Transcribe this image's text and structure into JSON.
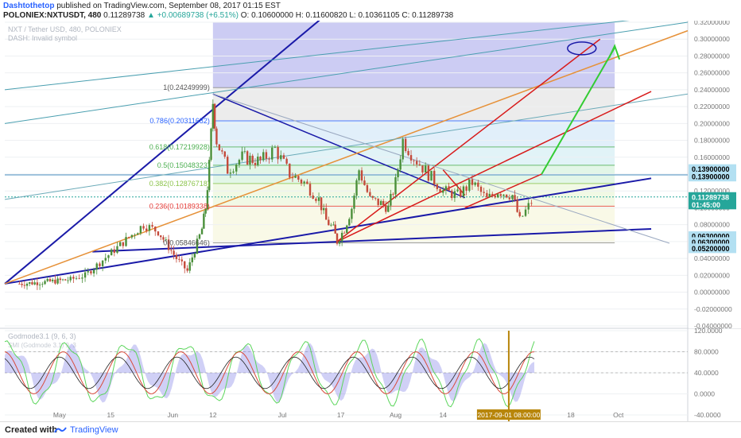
{
  "header": {
    "author": "Dashtothetop",
    "published": "published on TradingView.com, September 08, 2017 01:15 EST",
    "symbol_line": "POLONIEX:NXTUSDT, 480",
    "last": "0.11289738",
    "change": "▲ +0.00689738 (+6.51%)",
    "ohlc": "O: 0.10600000  H: 0.11600820  L: 0.10361105  C: 0.11289738"
  },
  "overlay": {
    "title": "NXT / Tether USD, 480, POLONIEX",
    "invalid": "DASH: Invalid symbol",
    "oscillator_label": "Godmode3.1 (9, 6, 3)",
    "oscillator_sub": "SMI (Godmode 3.1) 9, 3"
  },
  "price_axis": [
    "0.32000000",
    "0.30000000",
    "0.28000000",
    "0.26000000",
    "0.24000000",
    "0.22000000",
    "0.20000000",
    "0.18000000",
    "0.16000000",
    "0.14000000",
    "0.12000000",
    "0.10000000",
    "0.08000000",
    "0.06000000",
    "0.04000000",
    "0.02000000",
    "0.00000000",
    "-0.02000000",
    "-0.04000000"
  ],
  "price_badges": {
    "h1": "0.13900000",
    "h2": "0.13900000",
    "current": "0.11289738",
    "countdown": "01:45:00",
    "l1": "0.06300000",
    "l2": "0.06300000",
    "l3": "0.05200000"
  },
  "fib_labels": [
    "1(0.24249999)",
    "0.786(0.20311682)",
    "0.618(0.17219928)",
    "0.5(0.15048323)",
    "0.382(0.12876718)",
    "0.236(0.10189338)",
    "0(0.05846646)"
  ],
  "osc_axis": [
    "120.0000",
    "80.0000",
    "40.0000",
    "0.0000",
    "-40.0000"
  ],
  "time_axis": [
    "May",
    "15",
    "Jun",
    "12",
    "Jul",
    "17",
    "Aug",
    "14",
    "18",
    "Oct"
  ],
  "time_badge": "2017-09-01 08:00:00",
  "colors": {
    "up": "#26a69a",
    "fib_blue": "#2962ff",
    "fib_green": "#4caf50",
    "fib_red": "#e53935",
    "trend_blue": "#1a1aa8",
    "trend_red": "#d81b1b",
    "trend_orange": "#e69138",
    "arrow_green": "#33cc33",
    "badge_bg": "#b3e0f2"
  },
  "footer": {
    "created_with": "Created with",
    "brand": "TradingView"
  },
  "chart_data": {
    "type": "candlestick",
    "symbol": "POLONIEX:NXTUSDT",
    "interval": "480",
    "ylim": [
      -0.04,
      0.32
    ],
    "close_path": [
      [
        0.01,
        "2017-04-20"
      ],
      [
        0.012,
        "2017-04-27"
      ],
      [
        0.015,
        "2017-05-04"
      ],
      [
        0.02,
        "2017-05-08"
      ],
      [
        0.035,
        "2017-05-12"
      ],
      [
        0.05,
        "2017-05-16"
      ],
      [
        0.065,
        "2017-05-20"
      ],
      [
        0.08,
        "2017-05-24"
      ],
      [
        0.072,
        "2017-05-28"
      ],
      [
        0.04,
        "2017-06-02"
      ],
      [
        0.025,
        "2017-06-05"
      ],
      [
        0.05,
        "2017-06-07"
      ],
      [
        0.075,
        "2017-06-09"
      ],
      [
        0.1,
        "2017-06-10"
      ],
      [
        0.15,
        "2017-06-11"
      ],
      [
        0.225,
        "2017-06-12"
      ],
      [
        0.18,
        "2017-06-13"
      ],
      [
        0.145,
        "2017-06-16"
      ],
      [
        0.16,
        "2017-06-20"
      ],
      [
        0.155,
        "2017-06-25"
      ],
      [
        0.17,
        "2017-06-29"
      ],
      [
        0.14,
        "2017-07-03"
      ],
      [
        0.13,
        "2017-07-07"
      ],
      [
        0.11,
        "2017-07-11"
      ],
      [
        0.085,
        "2017-07-13"
      ],
      [
        0.075,
        "2017-07-15"
      ],
      [
        0.06,
        "2017-07-16"
      ],
      [
        0.075,
        "2017-07-18"
      ],
      [
        0.1,
        "2017-07-20"
      ],
      [
        0.145,
        "2017-07-22"
      ],
      [
        0.11,
        "2017-07-25"
      ],
      [
        0.105,
        "2017-07-28"
      ],
      [
        0.1,
        "2017-07-30"
      ],
      [
        0.13,
        "2017-08-01"
      ],
      [
        0.18,
        "2017-08-03"
      ],
      [
        0.16,
        "2017-08-06"
      ],
      [
        0.14,
        "2017-08-10"
      ],
      [
        0.12,
        "2017-08-14"
      ],
      [
        0.115,
        "2017-08-18"
      ],
      [
        0.13,
        "2017-08-22"
      ],
      [
        0.11,
        "2017-08-26"
      ],
      [
        0.12,
        "2017-08-29"
      ],
      [
        0.115,
        "2017-09-02"
      ],
      [
        0.085,
        "2017-09-04"
      ],
      [
        0.113,
        "2017-09-08"
      ]
    ],
    "fibonacci": [
      {
        "level": 1,
        "value": 0.24249999
      },
      {
        "level": 0.786,
        "value": 0.20311682
      },
      {
        "level": 0.618,
        "value": 0.17219928
      },
      {
        "level": 0.5,
        "value": 0.15048323
      },
      {
        "level": 0.382,
        "value": 0.12876718
      },
      {
        "level": 0.236,
        "value": 0.10189338
      },
      {
        "level": 0,
        "value": 0.05846646
      }
    ],
    "last_price": 0.11289738,
    "oscillator_ylim": [
      -40,
      120
    ]
  }
}
